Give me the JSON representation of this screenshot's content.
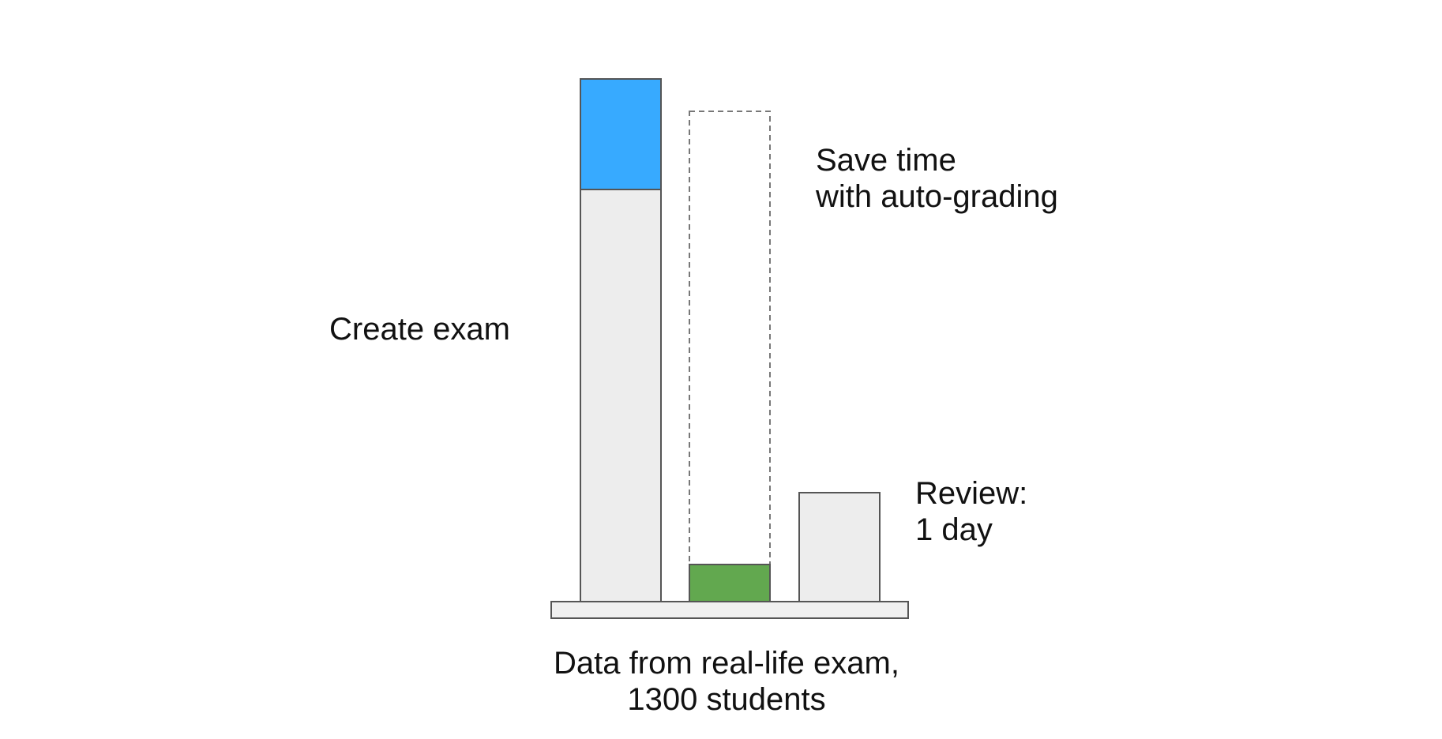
{
  "diagram": {
    "labels": {
      "create_exam": "Create exam",
      "save_time_line1": "Save time",
      "save_time_line2": "with auto-grading",
      "review_line1": "Review:",
      "review_line2": "1 day",
      "caption_line1": "Data from real-life exam,",
      "caption_line2": "1300 students"
    },
    "colors": {
      "create_exam_fill": "#ededed",
      "grading_segment_fill": "#37aaff",
      "auto_grading_fill": "#62a84f",
      "review_fill": "#ededed",
      "base_fill": "#f0f0f0",
      "outline": "#555555",
      "dashed_outline": "#777777"
    }
  }
}
